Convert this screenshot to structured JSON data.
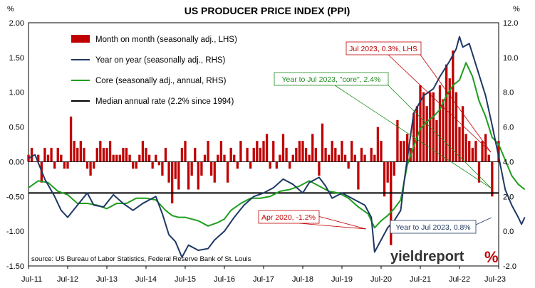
{
  "chart_data": {
    "type": "bar",
    "title": "US PRODUCER PRICE INDEX (PPI)",
    "left_axis_unit": "%",
    "right_axis_unit": "%",
    "source": "source: US Bureau of Labor Statistics, Federal Reserve Bank of St. Louis",
    "brand": {
      "name": "yieldreport",
      "symbol": "%"
    },
    "x_tick_labels": [
      "Jul-11",
      "Jul-12",
      "Jul-13",
      "Jul-14",
      "Jul-15",
      "Jul-16",
      "Jul-17",
      "Jul-18",
      "Jul-19",
      "Jul-20",
      "Jul-21",
      "Jul-22",
      "Jul-23"
    ],
    "ylim_lhs": [
      -1.5,
      2.0
    ],
    "yticks_lhs": [
      "2.00",
      "1.50",
      "1.00",
      "0.50",
      "0.00",
      "-0.50",
      "-1.00",
      "-1.50"
    ],
    "ylim_rhs": [
      -2.0,
      12.0
    ],
    "yticks_rhs": [
      "12.0",
      "10.0",
      "8.0",
      "6.0",
      "4.0",
      "2.0",
      "0.0",
      "-2.0"
    ],
    "x_start": "2011-07",
    "x_end": "2023-07",
    "legend_position": "top-left",
    "legend": [
      {
        "label": "Month on month (seasonally adj., LHS)",
        "marker": "box"
      },
      {
        "label": "Year on year (seasonally adj., RHS)",
        "marker": "line"
      },
      {
        "label": "Core (seasonally adj., annual, RHS)",
        "marker": "line"
      },
      {
        "label": "Median annual rate (2.2% since 1994)",
        "marker": "line"
      }
    ],
    "colors": {
      "mom": "#c00000",
      "yoy": "#1f3864",
      "core": "#1e9e1e",
      "median": "#000000",
      "callout_red": "#c00000",
      "callout_green": "#1e8a1e",
      "callout_blue": "#1f3864"
    },
    "callouts": [
      {
        "text": "Jul 2023, 0.3%, LHS",
        "color": "callout_red"
      },
      {
        "text": "Year to Jul 2023, \"core\", 2.4%",
        "color": "callout_green"
      },
      {
        "text": "Apr 2020, -1.2%",
        "color": "callout_red"
      },
      {
        "text": "Year to Jul 2023, 0.8%",
        "color": "callout_blue"
      }
    ],
    "median_rhs": 2.2,
    "series": [
      {
        "name": "Month on month (seasonally adj., LHS)",
        "axis": "lhs",
        "kind": "bar",
        "values": [
          0.1,
          0.2,
          0.0,
          0.1,
          -0.3,
          0.2,
          0.1,
          0.2,
          -0.1,
          0.2,
          0.1,
          -0.1,
          -0.1,
          0.65,
          0.3,
          0.2,
          0.3,
          0.2,
          -0.1,
          -0.2,
          -0.1,
          0.2,
          0.3,
          0.2,
          0.2,
          0.3,
          0.1,
          0.1,
          0.1,
          0.2,
          0.2,
          0.1,
          -0.1,
          -0.1,
          0.1,
          0.3,
          0.2,
          0.1,
          -0.1,
          0.1,
          -0.05,
          -0.2,
          0.2,
          -0.3,
          -0.6,
          -0.25,
          -0.4,
          0.2,
          0.3,
          -0.4,
          -0.2,
          0.2,
          -0.4,
          -0.2,
          0.1,
          0.3,
          -0.2,
          -0.3,
          0.1,
          0.3,
          0.1,
          -0.3,
          0.2,
          0.1,
          -0.1,
          0.3,
          0.0,
          0.2,
          -0.1,
          0.2,
          0.3,
          0.2,
          0.3,
          0.4,
          -0.1,
          0.3,
          -0.1,
          0.1,
          0.4,
          0.2,
          -0.1,
          0.1,
          0.2,
          0.3,
          0.3,
          0.2,
          0.1,
          0.4,
          0.2,
          -0.2,
          0.55,
          0.2,
          0.1,
          0.3,
          0.2,
          0.1,
          0.3,
          0.1,
          -0.1,
          0.3,
          0.1,
          -0.4,
          0.2,
          0.1,
          0.0,
          0.2,
          0.1,
          0.5,
          0.3,
          -0.5,
          -0.3,
          -1.2,
          -0.2,
          0.6,
          0.3,
          0.3,
          0.4,
          0.2,
          0.7,
          0.8,
          1.1,
          1.0,
          0.8,
          1.0,
          1.0,
          0.6,
          1.1,
          0.9,
          1.4,
          1.2,
          1.6,
          1.0,
          0.5,
          0.8,
          0.4,
          0.3,
          0.2,
          0.3,
          -0.3,
          0.3,
          0.4,
          0.1,
          -0.5,
          0.0,
          0.3
        ]
      },
      {
        "name": "Year on year (seasonally adj., RHS)",
        "axis": "rhs",
        "kind": "line",
        "points": [
          [
            0,
            4.2
          ],
          [
            2,
            4.4
          ],
          [
            5,
            3.0
          ],
          [
            8,
            2.0
          ],
          [
            10,
            1.2
          ],
          [
            12,
            0.8
          ],
          [
            15,
            1.5
          ],
          [
            18,
            2.2
          ],
          [
            20,
            1.5
          ],
          [
            23,
            1.4
          ],
          [
            26,
            2.1
          ],
          [
            29,
            1.6
          ],
          [
            32,
            1.2
          ],
          [
            35,
            1.6
          ],
          [
            37,
            1.8
          ],
          [
            39,
            2.0
          ],
          [
            41,
            1.0
          ],
          [
            43,
            -0.2
          ],
          [
            45,
            -0.6
          ],
          [
            47,
            -1.5
          ],
          [
            49,
            -0.8
          ],
          [
            52,
            -1.1
          ],
          [
            55,
            -1.0
          ],
          [
            57,
            -0.5
          ],
          [
            60,
            0.0
          ],
          [
            63,
            0.8
          ],
          [
            66,
            1.5
          ],
          [
            69,
            2.0
          ],
          [
            72,
            2.2
          ],
          [
            75,
            2.5
          ],
          [
            78,
            3.0
          ],
          [
            81,
            2.7
          ],
          [
            84,
            2.2
          ],
          [
            86,
            2.8
          ],
          [
            89,
            3.1
          ],
          [
            91,
            2.6
          ],
          [
            93,
            1.9
          ],
          [
            96,
            2.2
          ],
          [
            99,
            1.9
          ],
          [
            101,
            1.7
          ],
          [
            103,
            1.5
          ],
          [
            105,
            0.8
          ],
          [
            106,
            -1.2
          ],
          [
            108,
            -0.5
          ],
          [
            110,
            0.2
          ],
          [
            112,
            0.6
          ],
          [
            114,
            1.2
          ],
          [
            115,
            2.8
          ],
          [
            117,
            5.5
          ],
          [
            118,
            6.8
          ],
          [
            121,
            7.8
          ],
          [
            124,
            8.2
          ],
          [
            126,
            8.9
          ],
          [
            129,
            9.8
          ],
          [
            131,
            10.5
          ],
          [
            132,
            11.2
          ],
          [
            133,
            10.6
          ],
          [
            135,
            10.8
          ],
          [
            138,
            9.0
          ],
          [
            140,
            7.8
          ],
          [
            142,
            6.1
          ],
          [
            144,
            4.3
          ],
          [
            146,
            2.4
          ],
          [
            148,
            1.5
          ],
          [
            150,
            0.8
          ],
          [
            151,
            0.4
          ],
          [
            152,
            0.8
          ]
        ]
      },
      {
        "name": "Core (seasonally adj., annual, RHS)",
        "axis": "rhs",
        "kind": "line",
        "points": [
          [
            0,
            2.5
          ],
          [
            3,
            2.9
          ],
          [
            6,
            2.8
          ],
          [
            9,
            2.3
          ],
          [
            12,
            2.1
          ],
          [
            15,
            1.6
          ],
          [
            18,
            1.6
          ],
          [
            21,
            1.5
          ],
          [
            24,
            1.3
          ],
          [
            27,
            1.6
          ],
          [
            30,
            1.6
          ],
          [
            33,
            1.9
          ],
          [
            36,
            1.9
          ],
          [
            39,
            1.8
          ],
          [
            42,
            1.2
          ],
          [
            44,
            0.9
          ],
          [
            46,
            0.8
          ],
          [
            48,
            0.8
          ],
          [
            50,
            0.7
          ],
          [
            52,
            0.6
          ],
          [
            55,
            0.3
          ],
          [
            58,
            0.5
          ],
          [
            60,
            0.7
          ],
          [
            62,
            1.2
          ],
          [
            65,
            1.6
          ],
          [
            68,
            1.9
          ],
          [
            71,
            1.9
          ],
          [
            74,
            2.0
          ],
          [
            77,
            2.3
          ],
          [
            80,
            2.4
          ],
          [
            83,
            2.6
          ],
          [
            86,
            2.9
          ],
          [
            89,
            2.6
          ],
          [
            92,
            2.3
          ],
          [
            95,
            2.2
          ],
          [
            98,
            1.9
          ],
          [
            101,
            1.4
          ],
          [
            104,
            1.0
          ],
          [
            106,
            0.2
          ],
          [
            108,
            0.6
          ],
          [
            110,
            0.9
          ],
          [
            112,
            1.3
          ],
          [
            114,
            1.8
          ],
          [
            116,
            3.8
          ],
          [
            118,
            4.9
          ],
          [
            120,
            5.9
          ],
          [
            122,
            6.3
          ],
          [
            124,
            6.6
          ],
          [
            126,
            7.0
          ],
          [
            128,
            7.8
          ],
          [
            130,
            8.4
          ],
          [
            132,
            8.7
          ],
          [
            134,
            9.7
          ],
          [
            136,
            8.9
          ],
          [
            138,
            7.5
          ],
          [
            140,
            6.6
          ],
          [
            142,
            5.4
          ],
          [
            144,
            5.0
          ],
          [
            146,
            4.1
          ],
          [
            148,
            3.2
          ],
          [
            150,
            2.7
          ],
          [
            152,
            2.4
          ]
        ]
      }
    ]
  }
}
